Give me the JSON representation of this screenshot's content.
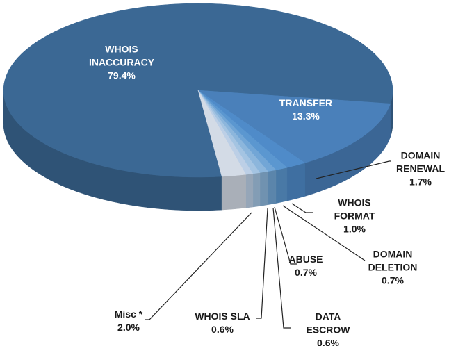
{
  "chart_data": {
    "type": "pie",
    "categories": [
      "WHOIS INACCURACY",
      "TRANSFER",
      "DOMAIN RENEWAL",
      "WHOIS FORMAT",
      "DOMAIN DELETION",
      "ABUSE",
      "DATA ESCROW",
      "WHOIS SLA",
      "Misc *"
    ],
    "values": [
      79.4,
      13.3,
      1.7,
      1.0,
      0.7,
      0.7,
      0.6,
      0.6,
      2.0
    ],
    "value_labels": [
      "79.4%",
      "13.3%",
      "1.7%",
      "1.0%",
      "0.7%",
      "0.7%",
      "0.6%",
      "0.6%",
      "2.0%"
    ],
    "colors": [
      "#3b6894",
      "#4a80ba",
      "#4f8bc9",
      "#5b97d0",
      "#72a6d6",
      "#8cb6dc",
      "#a4c4e2",
      "#bccfe6",
      "#d3dbe6"
    ]
  }
}
